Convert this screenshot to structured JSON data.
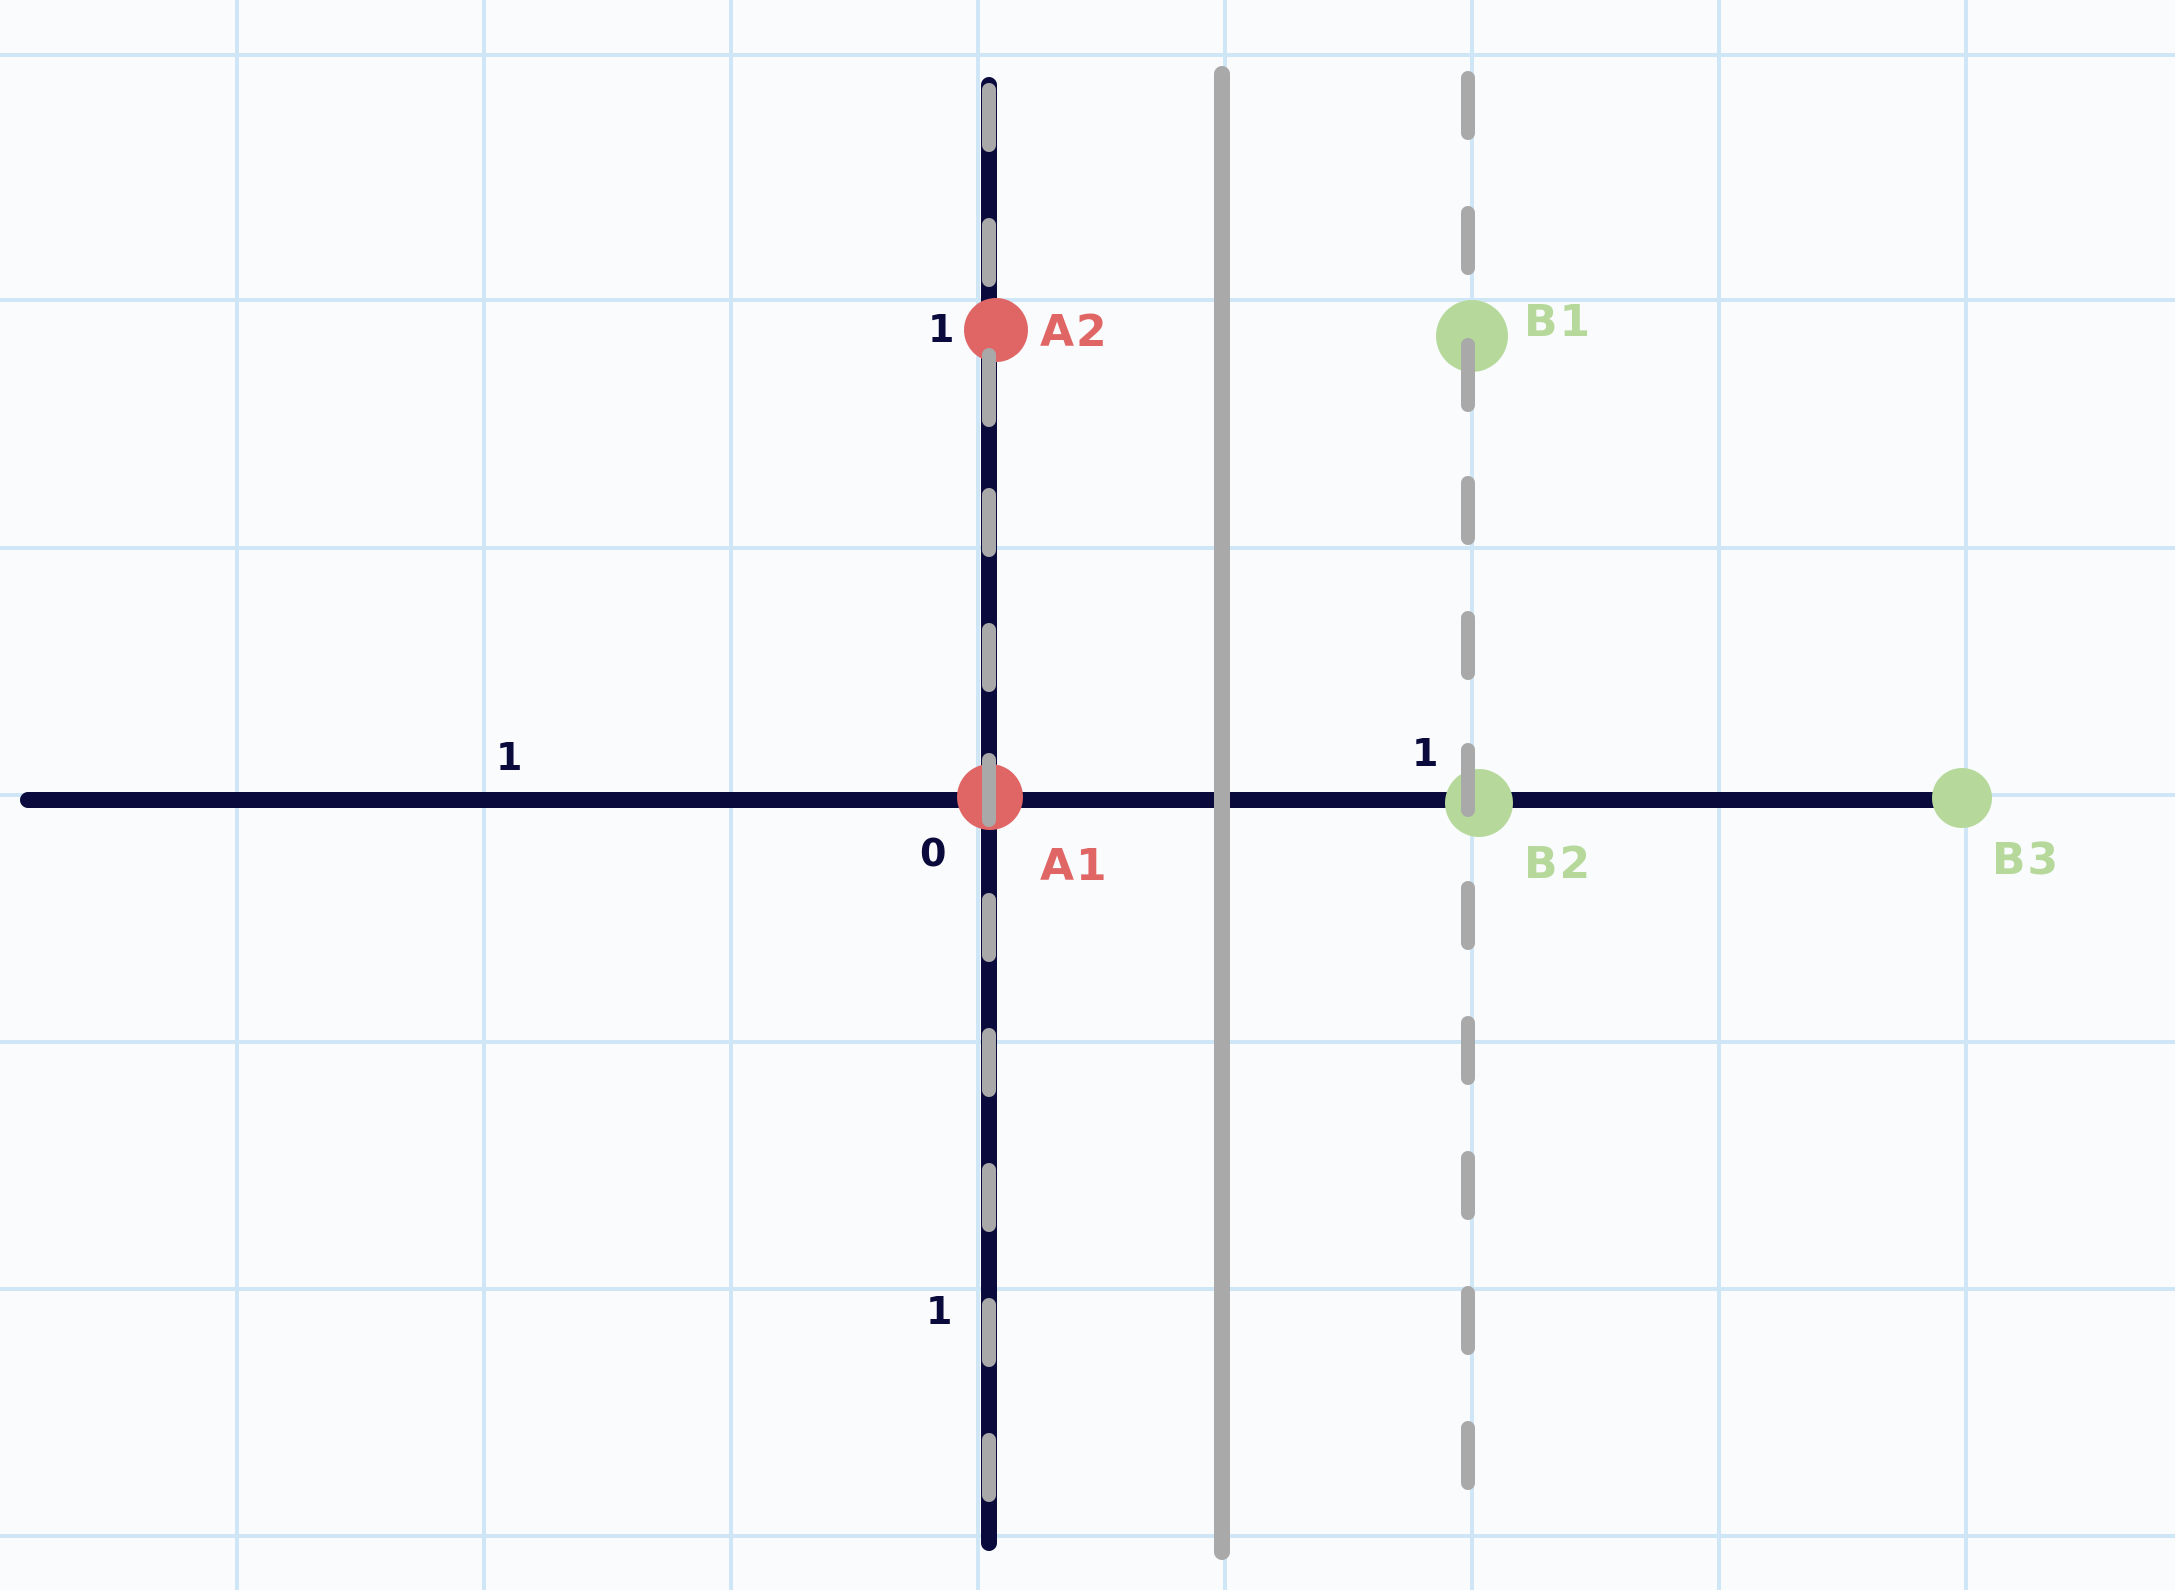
{
  "colors": {
    "background": "#f9fbfd",
    "grid": "#cfe6f6",
    "axis": "#0a0a3c",
    "divider": "#a9a9a9",
    "point_a": "#e06666",
    "point_b": "#b6d99b"
  },
  "tick_labels": {
    "left_axis_one": "1",
    "origin": "0",
    "upper_axis_one": "1",
    "lower_axis_one": "1",
    "right_axis_one": "1"
  },
  "points": {
    "a1": {
      "label": "A1"
    },
    "a2": {
      "label": "A2"
    },
    "b1": {
      "label": "B1"
    },
    "b2": {
      "label": "B2"
    },
    "b3": {
      "label": "B3"
    }
  }
}
